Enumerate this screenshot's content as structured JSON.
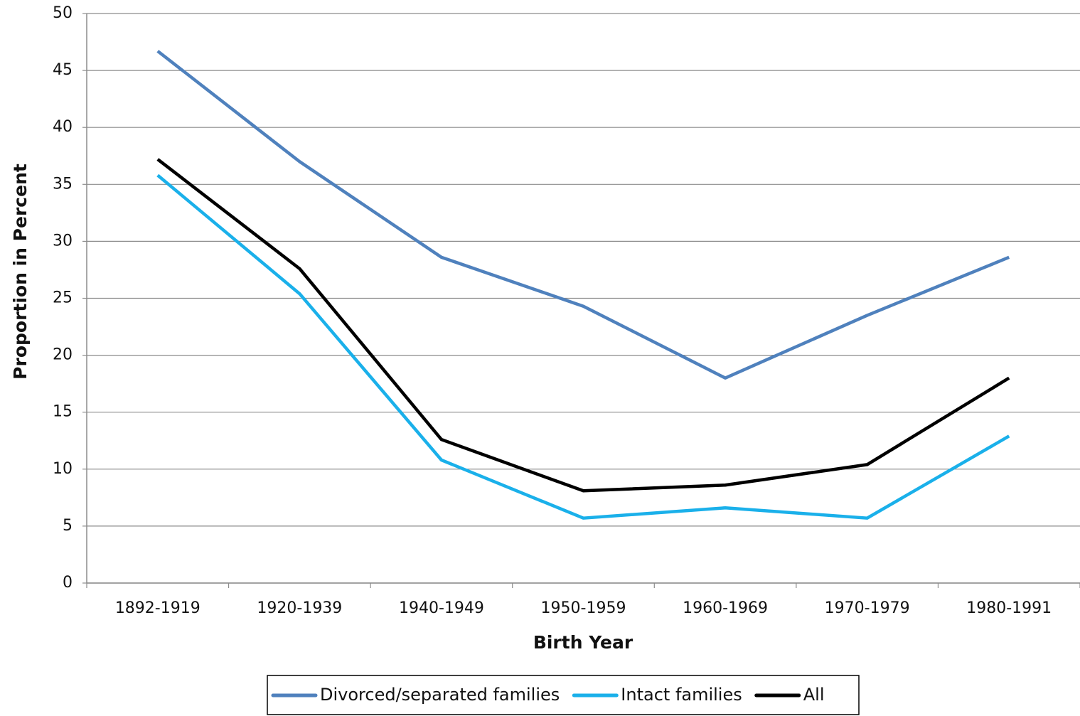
{
  "chart_data": {
    "type": "line",
    "x_label": "Birth Year",
    "y_label": "Proportion in Percent",
    "categories": [
      "1892-1919",
      "1920-1939",
      "1940-1949",
      "1950-1959",
      "1960-1969",
      "1970-1979",
      "1980-1991"
    ],
    "series": [
      {
        "name": "Divorced/separated families",
        "color": "#4f81bd",
        "values": [
          46.7,
          37,
          28.6,
          24.3,
          18,
          23.5,
          28.6
        ]
      },
      {
        "name": "Intact families",
        "color": "#1ab0ea",
        "values": [
          35.8,
          25.4,
          10.8,
          5.7,
          6.6,
          5.7,
          12.9
        ]
      },
      {
        "name": "All",
        "color": "#000000",
        "values": [
          37.2,
          27.6,
          12.6,
          8.1,
          8.6,
          10.4,
          18
        ]
      }
    ],
    "ylim": [
      0,
      50
    ],
    "yticks": [
      0,
      5,
      10,
      15,
      20,
      25,
      30,
      35,
      40,
      45,
      50
    ],
    "grid": true,
    "legend": "bottom"
  }
}
